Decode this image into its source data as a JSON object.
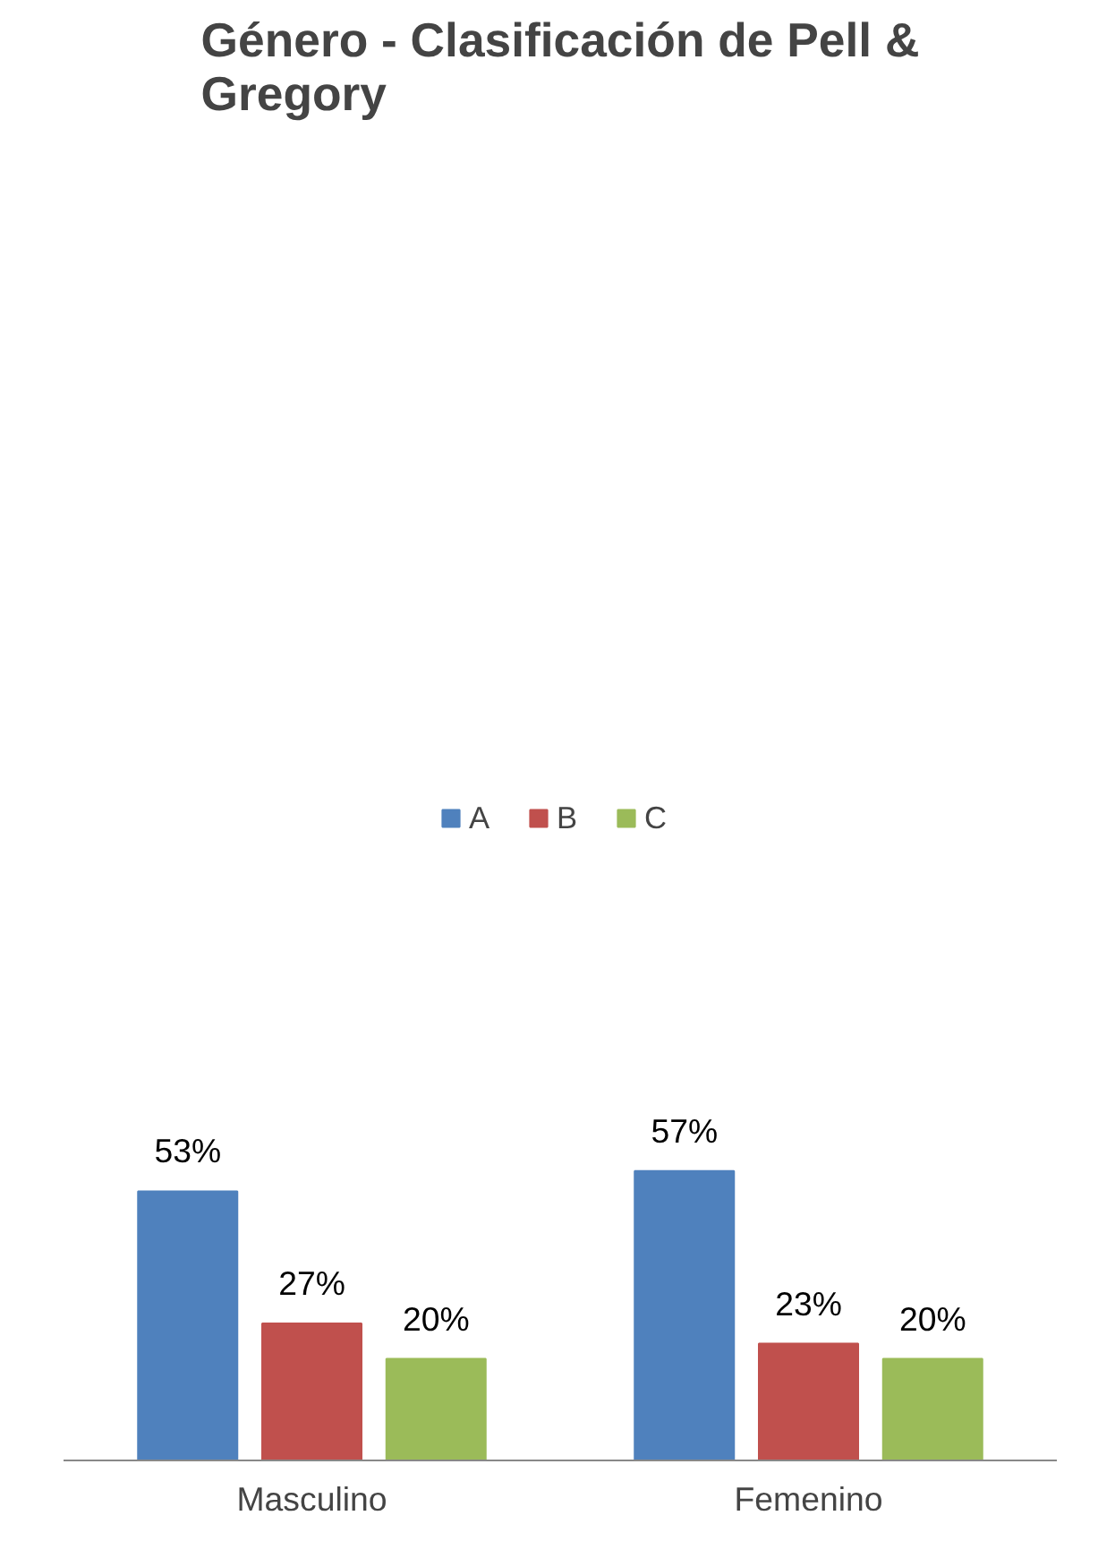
{
  "chart_data": {
    "type": "bar",
    "title": "Género - Clasificación de Pell &\nGregory",
    "categories": [
      "Masculino",
      "Femenino"
    ],
    "series": [
      {
        "name": "A",
        "color": "#4f81bd",
        "values": [
          53,
          57
        ],
        "value_labels": [
          "53%",
          "57%"
        ]
      },
      {
        "name": "B",
        "color": "#c0504d",
        "values": [
          27,
          23
        ],
        "value_labels": [
          "27%",
          "23%"
        ]
      },
      {
        "name": "C",
        "color": "#9bbb59",
        "values": [
          20,
          20
        ],
        "value_labels": [
          "20%",
          "20%"
        ]
      }
    ],
    "legend": "top",
    "grid": false
  }
}
